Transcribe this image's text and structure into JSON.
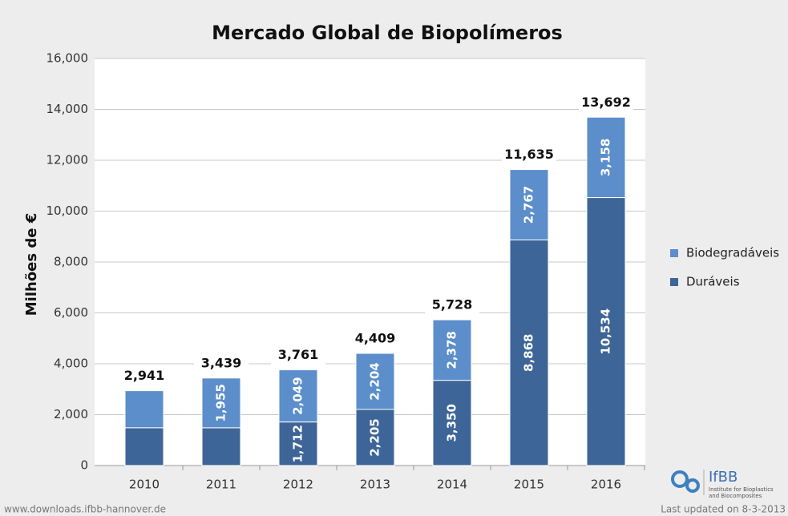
{
  "chart_data": {
    "type": "stacked_bar",
    "title": "Mercado Global de Biopolímeros",
    "y_label": "Milhões de  €",
    "categories": [
      "2010",
      "2011",
      "2012",
      "2013",
      "2014",
      "2015",
      "2016"
    ],
    "series": [
      {
        "name": "Duráveis",
        "color": "#3e6597",
        "values": [
          1486,
          1484,
          1712,
          2205,
          3350,
          8868,
          10534
        ],
        "value_labels": [
          null,
          null,
          "1,712",
          "2,205",
          "3,350",
          "8,868",
          "10,534"
        ]
      },
      {
        "name": "Biodegradáveis",
        "color": "#5b8ecb",
        "values": [
          1455,
          1955,
          2049,
          2204,
          2378,
          2767,
          3158
        ],
        "value_labels": [
          null,
          "1,955",
          "2,049",
          "2,204",
          "2,378",
          "2,767",
          "3,158"
        ]
      }
    ],
    "totals": [
      2941,
      3439,
      3761,
      4409,
      5728,
      11635,
      13692
    ],
    "total_labels": [
      "2,941",
      "3,439",
      "3,761",
      "4,409",
      "5,728",
      "11,635",
      "13,692"
    ],
    "ylim": [
      0,
      16000
    ],
    "yticks": [
      0,
      {
        "value": 2000,
        "label": "2,000"
      },
      {
        "value": 4000,
        "label": "4,000"
      },
      {
        "value": 6000,
        "label": "6,000"
      },
      {
        "value": 8000,
        "label": "8,000"
      },
      {
        "value": 10000,
        "label": "10,000"
      },
      {
        "value": 12000,
        "label": "12,000"
      },
      {
        "value": 14000,
        "label": "14,000"
      },
      {
        "value": 16000,
        "label": "16,000"
      }
    ],
    "grid": true,
    "legend": "right",
    "source": "www.downloads.ifbb-hannover.de",
    "updated": "Last updated on 8-3-2013",
    "logo": {
      "name": "IfBB",
      "subtitle_1": "Institute for Bioplastics",
      "subtitle_2": "and Biocomposites"
    }
  }
}
